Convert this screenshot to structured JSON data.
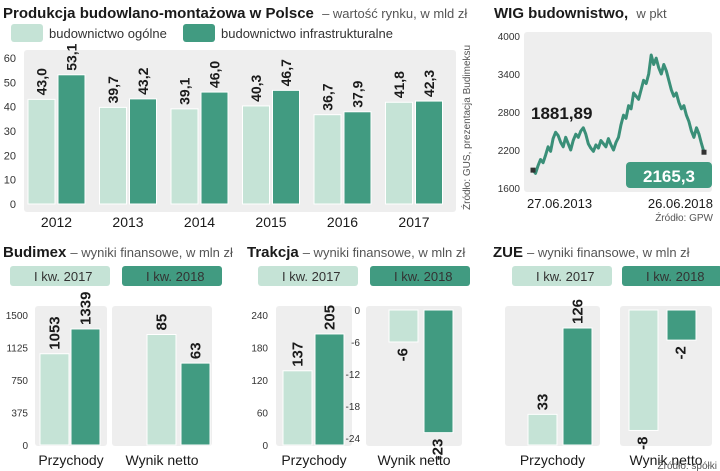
{
  "colors": {
    "light": "#c5e3d6",
    "dark": "#419b81",
    "panel": "#eeeeee",
    "line": "#3a8f78",
    "text": "#1a1a1a"
  },
  "chart_data": [
    {
      "type": "bar",
      "title": "Produkcja budowlano-montażowa w Polsce",
      "subtitle": "– wartość rynku, w mld zł",
      "source": "Źródło: GUS, prezentacja Budimeksu",
      "categories": [
        "2012",
        "2013",
        "2014",
        "2015",
        "2016",
        "2017"
      ],
      "series": [
        {
          "name": "budownictwo ogólne",
          "values": [
            43.0,
            39.7,
            39.1,
            40.3,
            36.7,
            41.8
          ],
          "labels": [
            "43,0",
            "39,7",
            "39,1",
            "40,3",
            "36,7",
            "41,8"
          ]
        },
        {
          "name": "budownictwo infrastrukturalne",
          "values": [
            53.1,
            43.2,
            46.0,
            46.7,
            37.9,
            42.3
          ],
          "labels": [
            "53,1",
            "43,2",
            "46,0",
            "46,7",
            "37,9",
            "42,3"
          ]
        }
      ],
      "ylim": [
        0,
        60
      ],
      "yticks": [
        "0",
        "10",
        "20",
        "30",
        "40",
        "50",
        "60"
      ]
    },
    {
      "type": "line",
      "title": "WIG budownistwo,",
      "subtitle": "w pkt",
      "source": "Źródło: GPW",
      "x_start": "27.06.2013",
      "x_end": "26.06.2018",
      "start_value": 1881.89,
      "start_label": "1881,89",
      "end_value": 2165.3,
      "end_label": "2165,3",
      "ylim": [
        1600,
        4000
      ],
      "yticks": [
        "1600",
        "2200",
        "2800",
        "3400",
        "4000"
      ],
      "values": [
        1882,
        1830,
        1950,
        2050,
        2000,
        2120,
        2250,
        2180,
        2380,
        2480,
        2430,
        2320,
        2250,
        2400,
        2300,
        2200,
        2350,
        2450,
        2400,
        2500,
        2550,
        2450,
        2300,
        2230,
        2180,
        2280,
        2230,
        2350,
        2300,
        2250,
        2380,
        2280,
        2200,
        2320,
        2400,
        2600,
        2750,
        2700,
        2900,
        2850,
        3100,
        3050,
        3000,
        3150,
        3300,
        3250,
        3400,
        3700,
        3550,
        3650,
        3500,
        3400,
        3550,
        3450,
        3300,
        3150,
        3050,
        3100,
        2950,
        2850,
        2900,
        2750,
        2650,
        2500,
        2400,
        2550,
        2450,
        2300,
        2165
      ]
    },
    {
      "type": "bar",
      "title": "Budimex",
      "subtitle": "– wyniki finansowe, w mln zł",
      "legend": [
        "I kw. 2017",
        "I kw. 2018"
      ],
      "groups": [
        {
          "name": "Przychody",
          "values": [
            1053,
            1339
          ],
          "labels": [
            "1053",
            "1339"
          ],
          "ylim": [
            0,
            1500
          ],
          "yticks": [
            "0",
            "375",
            "750",
            "1125",
            "1500"
          ]
        },
        {
          "name": "Wynik netto",
          "values": [
            85,
            63
          ],
          "labels": [
            "85",
            "63"
          ],
          "ylim": [
            0,
            100
          ],
          "yticks": []
        }
      ]
    },
    {
      "type": "bar",
      "title": "Trakcja",
      "subtitle": "– wyniki finansowe, w mln zł",
      "legend": [
        "I kw. 2017",
        "I kw. 2018"
      ],
      "groups": [
        {
          "name": "Przychody",
          "values": [
            137,
            205
          ],
          "labels": [
            "137",
            "205"
          ],
          "ylim": [
            0,
            240
          ],
          "yticks": [
            "0",
            "60",
            "120",
            "180",
            "240"
          ]
        },
        {
          "name": "Wynik netto",
          "values": [
            -6,
            -23
          ],
          "labels": [
            "-6",
            "-23"
          ],
          "ylim": [
            -24,
            0
          ],
          "yticks": [
            "-24",
            "-18",
            "-12",
            "-6",
            "0"
          ]
        }
      ]
    },
    {
      "type": "bar",
      "title": "ZUE",
      "subtitle": "– wyniki finansowe, w mln zł",
      "source": "Źródło: spółki",
      "legend": [
        "I kw. 2017",
        "I kw. 2018"
      ],
      "groups": [
        {
          "name": "Przychody",
          "values": [
            33,
            126
          ],
          "labels": [
            "33",
            "126"
          ],
          "ylim": [
            0,
            140
          ],
          "yticks": []
        },
        {
          "name": "Wynik netto",
          "values": [
            -8,
            -2
          ],
          "labels": [
            "-8",
            "-2"
          ],
          "ylim": [
            -8.5,
            0
          ],
          "yticks": []
        }
      ]
    }
  ]
}
